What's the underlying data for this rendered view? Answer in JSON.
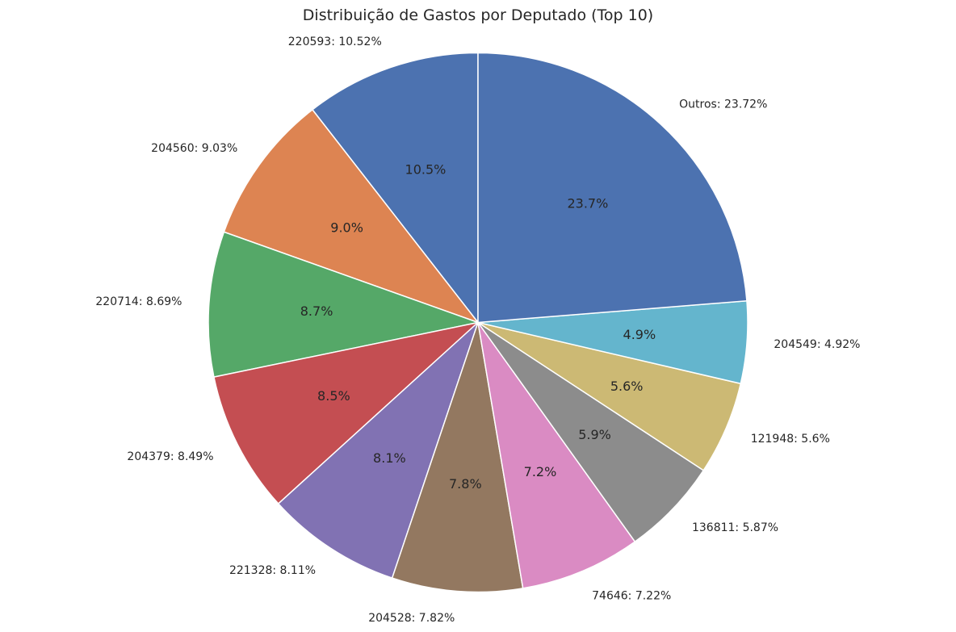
{
  "chart_data": {
    "type": "pie",
    "title": "Distribuição de Gastos por Deputado (Top 10)",
    "start_angle_deg": 90,
    "direction": "counterclockwise",
    "slices": [
      {
        "name": "220593",
        "value": 10.52,
        "label": "220593: 10.52%",
        "pct_label": "10.5%",
        "color": "#4c72b0"
      },
      {
        "name": "204560",
        "value": 9.03,
        "label": "204560: 9.03%",
        "pct_label": "9.0%",
        "color": "#dd8452"
      },
      {
        "name": "220714",
        "value": 8.69,
        "label": "220714: 8.69%",
        "pct_label": "8.7%",
        "color": "#55a868"
      },
      {
        "name": "204379",
        "value": 8.49,
        "label": "204379: 8.49%",
        "pct_label": "8.5%",
        "color": "#c44e52"
      },
      {
        "name": "221328",
        "value": 8.11,
        "label": "221328: 8.11%",
        "pct_label": "8.1%",
        "color": "#8172b3"
      },
      {
        "name": "204528",
        "value": 7.82,
        "label": "204528: 7.82%",
        "pct_label": "7.8%",
        "color": "#937860"
      },
      {
        "name": "74646",
        "value": 7.22,
        "label": "74646: 7.22%",
        "pct_label": "7.2%",
        "color": "#da8bc3"
      },
      {
        "name": "136811",
        "value": 5.87,
        "label": "136811: 5.87%",
        "pct_label": "5.9%",
        "color": "#8c8c8c"
      },
      {
        "name": "121948",
        "value": 5.6,
        "label": "121948: 5.6%",
        "pct_label": "5.6%",
        "color": "#ccb974"
      },
      {
        "name": "204549",
        "value": 4.92,
        "label": "204549: 4.92%",
        "pct_label": "4.9%",
        "color": "#64b5cd"
      },
      {
        "name": "Outros",
        "value": 23.72,
        "label": "Outros: 23.72%",
        "pct_label": "23.7%",
        "color": "#4c72b0"
      }
    ]
  }
}
